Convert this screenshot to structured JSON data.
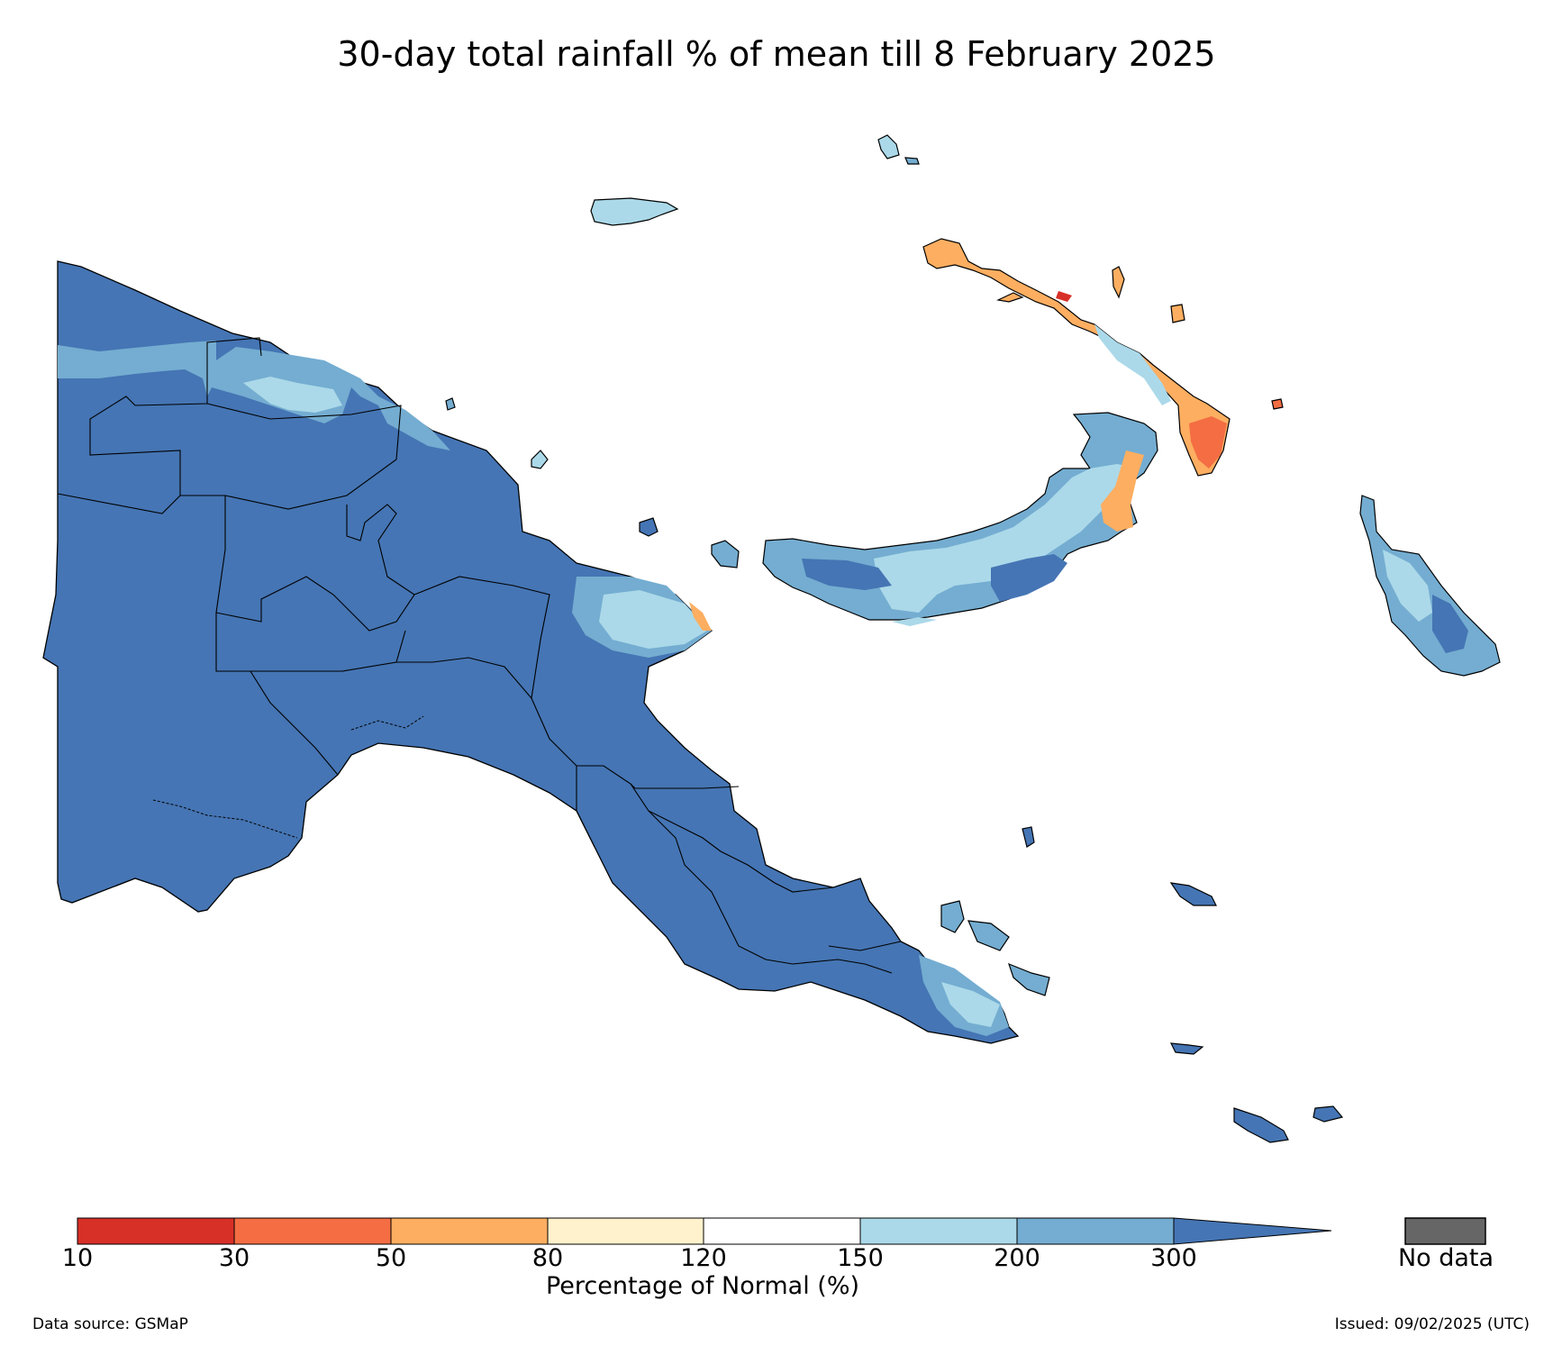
{
  "title": "30-day total rainfall % of mean till 8 February 2025",
  "legend": {
    "title": "Percentage of Normal (%)",
    "ticks": [
      "10",
      "30",
      "50",
      "80",
      "120",
      "150",
      "200",
      "300"
    ],
    "bins": [
      {
        "range": "10-30",
        "color": "#d73027"
      },
      {
        "range": "30-50",
        "color": "#f46d43"
      },
      {
        "range": "50-80",
        "color": "#fdae61"
      },
      {
        "range": "80-120",
        "color": "#fff2cc"
      },
      {
        "range": "120-150",
        "color": "#ffffff"
      },
      {
        "range": "150-200",
        "color": "#abd9e9"
      },
      {
        "range": "200-300",
        "color": "#74add1"
      },
      {
        "range": ">300",
        "color": "#4575b4"
      }
    ],
    "nodata_label": "No data",
    "nodata_color": "#666666"
  },
  "footer": {
    "data_source": "Data source: GSMaP",
    "issued": "Issued: 09/02/2025 (UTC)"
  }
}
